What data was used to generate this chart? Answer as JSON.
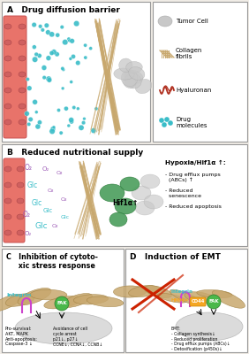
{
  "panel_A_title": "A   Drug diffusion barrier",
  "panel_B_title": "B   Reduced nutritional supply",
  "panel_C_title": "C   Inhibition of cytoto-\n     xic stress response",
  "panel_D_title": "D   Induction of EMT",
  "hypoxia_title": "Hypoxia/Hif1α ↑:",
  "hypoxia_bullets": [
    "- Drug efflux pumps\n  (ABCs) ↑",
    "- Reduced\n  senescence",
    "- Reduced apoptosis"
  ],
  "legend_labels": [
    "Tumor Cell",
    "Collagen\nfibrils",
    "Hyaluronan",
    "Drug\nmolecules"
  ],
  "panel_C_left": "Pro-survival:\nAKT, MAPK\nAnti-apoptosis:\nCaspase-3 ↓",
  "panel_C_right": "Avoidance of cell\ncycle arrest\np21↓, p27↓\nCCNE↓, CCNA↓, CCNB↓",
  "panel_D_emt": "EMT:\n- Collagen synthesis↓\n- Reduced proliferation\n- Drug efflux pumps (ABCs)↓\n- Detoxification (p450s)↓",
  "bg_color": "#f0ece6",
  "panel_bg": "#ffffff",
  "vessel_color": "#e8736a",
  "vessel_edge": "#c95050",
  "drug_color": "#3abdc8",
  "collagen_color": "#c8a86e",
  "hyaluronan_color": "#b03020",
  "tumor_cell_color": "#c8c8c8",
  "green_cell_color": "#4a9e5c",
  "integrin_color": "#3abdc8",
  "fak_color": "#4ab84a",
  "cd44_color": "#3abdc8",
  "hmm_color": "#f5a623",
  "red_fiber_color": "#cc2200",
  "panel_edge": "#999999"
}
